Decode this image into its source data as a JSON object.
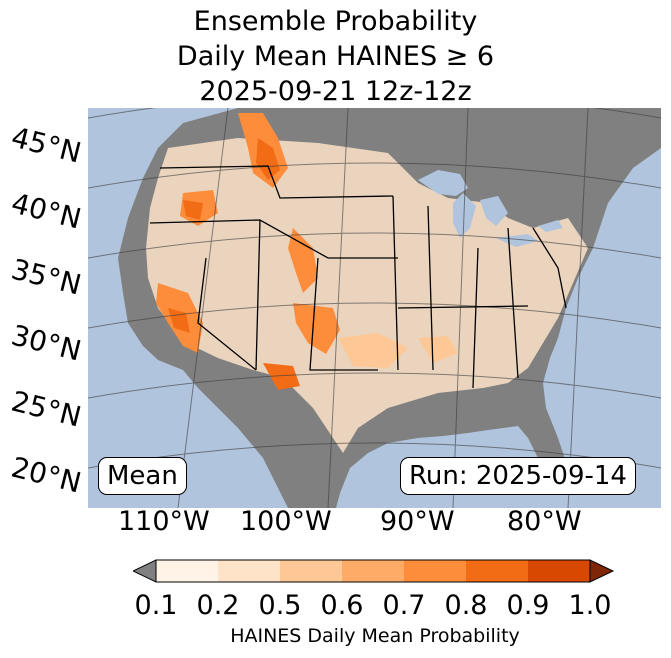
{
  "title": {
    "line1": "Ensemble Probability",
    "line2": "Daily Mean HAINES ≥ 6",
    "line3": "2025-09-21 12z-12z"
  },
  "latitude_labels": [
    "45°N",
    "40°N",
    "35°N",
    "30°N",
    "25°N",
    "20°N"
  ],
  "longitude_labels": [
    "110°W",
    "100°W",
    "90°W",
    "80°W"
  ],
  "badges": {
    "left": "Mean",
    "right": "Run: 2025-09-14"
  },
  "colorbar": {
    "label": "HAINES Daily Mean Probability",
    "ticks": [
      "0.1",
      "0.2",
      "0.5",
      "0.6",
      "0.7",
      "0.8",
      "0.9",
      "1.0"
    ],
    "under_color": "#808080",
    "bins": [
      "#fff3e7",
      "#fee3c8",
      "#fdc896",
      "#fdab67",
      "#fd8c3b",
      "#f26b15",
      "#d94801"
    ],
    "over_color": "#7f2704"
  },
  "colors": {
    "ocean": "#b0c4de",
    "land": "#808080",
    "low_prob": "#fee3c8",
    "mid_prob": "#fd8c3b",
    "high_prob": "#f26b15"
  }
}
